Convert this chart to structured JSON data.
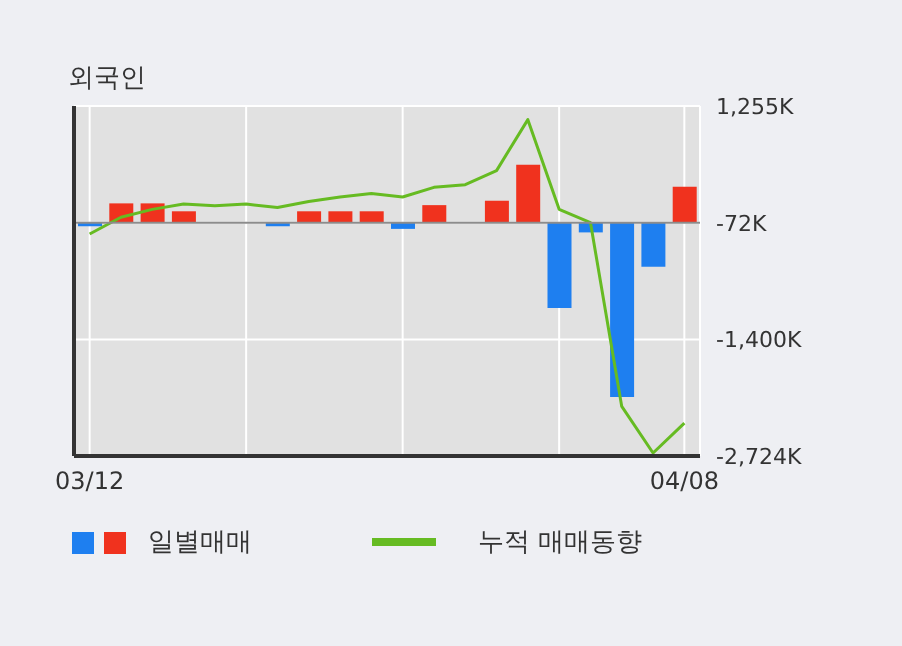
{
  "chart_data": {
    "type": "bar",
    "title": "외국인",
    "categories": [
      "03/12",
      null,
      null,
      null,
      null,
      null,
      null,
      null,
      null,
      null,
      null,
      null,
      null,
      null,
      null,
      null,
      null,
      null,
      null,
      "04/08"
    ],
    "series": [
      {
        "name": "일별매매",
        "colors": [
          "#1e7ff0",
          "#f0321e",
          "#f0321e",
          "#f0321e",
          "#f0321e",
          "#f0321e",
          "#1e7ff0",
          "#f0321e",
          "#f0321e",
          "#f0321e",
          "#1e7ff0",
          "#f0321e",
          "#f0321e",
          "#f0321e",
          "#f0321e",
          "#1e7ff0",
          "#1e7ff0",
          "#1e7ff0",
          "#1e7ff0",
          "#f0321e"
        ],
        "base": [
          -72,
          -72,
          -72,
          -72,
          null,
          null,
          -72,
          -72,
          -72,
          -72,
          -72,
          -72,
          null,
          -72,
          -72,
          -72,
          -72,
          -72,
          -72,
          -72
        ],
        "values": [
          -40,
          220,
          220,
          130,
          null,
          null,
          -40,
          130,
          130,
          130,
          -70,
          200,
          null,
          250,
          660,
          -970,
          -110,
          -1980,
          -500,
          410
        ]
      },
      {
        "type": "line",
        "name": "누적 매매동향",
        "color": "#66bb22",
        "values": [
          -200,
          -10,
          80,
          140,
          120,
          140,
          100,
          170,
          220,
          260,
          220,
          330,
          360,
          520,
          1100,
          80,
          -70,
          -2160,
          -2690,
          -2350
        ]
      }
    ],
    "ylim": [
      -2724,
      1255
    ],
    "yticks": [
      {
        "value": 1255,
        "label": "1,255K"
      },
      {
        "value": -72,
        "label": "-72K"
      },
      {
        "value": -1400,
        "label": "-1,400K"
      },
      {
        "value": -2724,
        "label": "-2,724K"
      }
    ],
    "ref_lines": [
      {
        "axis": "y",
        "value": -72,
        "color": "#8c8c8c"
      }
    ],
    "grid": true,
    "legend": "bottom"
  }
}
